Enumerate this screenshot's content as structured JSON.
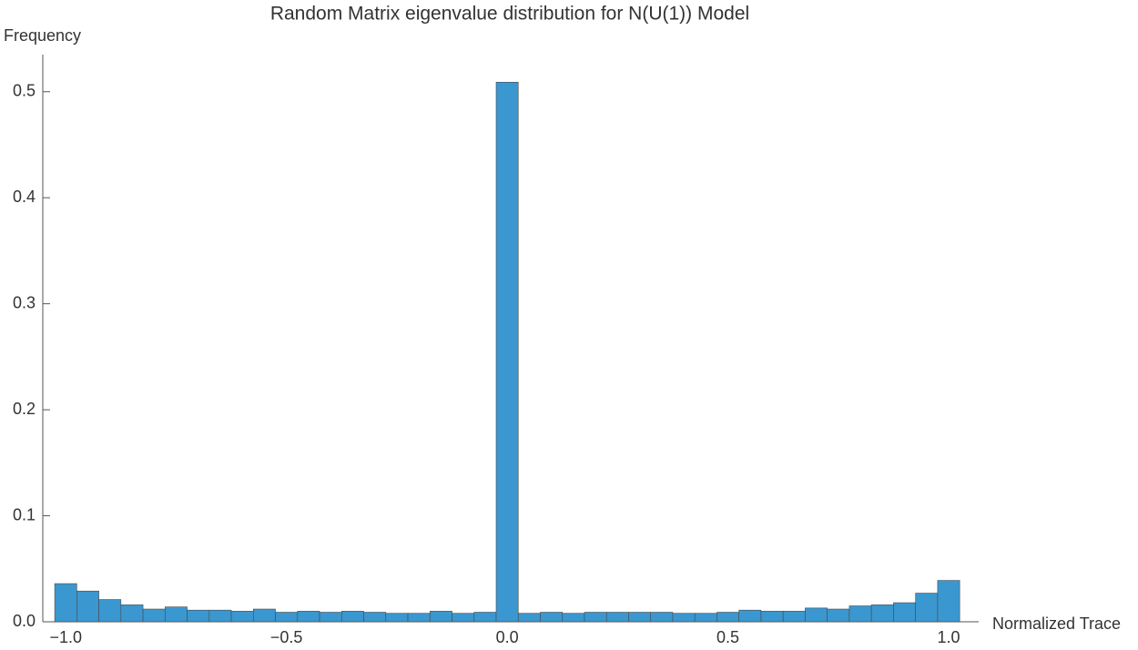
{
  "chart_data": {
    "type": "histogram",
    "title": "Random Matrix eigenvalue distribution for N(U(1)) Model",
    "x_label": "Normalized Trace",
    "y_label": "Frequency",
    "bins": [
      -1.025,
      -0.975,
      -0.925,
      -0.875,
      -0.825,
      -0.775,
      -0.725,
      -0.675,
      -0.625,
      -0.575,
      -0.525,
      -0.475,
      -0.425,
      -0.375,
      -0.325,
      -0.275,
      -0.225,
      -0.175,
      -0.125,
      -0.075,
      -0.025,
      0.025,
      0.075,
      0.125,
      0.175,
      0.225,
      0.275,
      0.325,
      0.375,
      0.425,
      0.475,
      0.525,
      0.575,
      0.625,
      0.675,
      0.725,
      0.775,
      0.825,
      0.875,
      0.925,
      0.975,
      1.025
    ],
    "values": [
      0.036,
      0.029,
      0.021,
      0.016,
      0.012,
      0.014,
      0.011,
      0.011,
      0.01,
      0.012,
      0.009,
      0.01,
      0.009,
      0.01,
      0.009,
      0.008,
      0.008,
      0.01,
      0.008,
      0.009,
      0.509,
      0.008,
      0.009,
      0.008,
      0.009,
      0.009,
      0.009,
      0.009,
      0.008,
      0.008,
      0.009,
      0.011,
      0.01,
      0.01,
      0.013,
      0.012,
      0.015,
      0.016,
      0.018,
      0.027,
      0.039
    ],
    "color": "#3a97cf",
    "xlim": [
      -1.052,
      1.068
    ],
    "ylim": [
      0,
      0.535
    ],
    "xticks": [
      {
        "value": -1,
        "label": "−1.0"
      },
      {
        "value": -0.5,
        "label": "−0.5"
      },
      {
        "value": 0,
        "label": "0.0"
      },
      0.5,
      {
        "value": 1,
        "label": "1.0"
      }
    ],
    "yticks": [
      {
        "value": 0,
        "label": "0.0"
      },
      0.1,
      0.2,
      0.3,
      0.4,
      0.5
    ],
    "grid": false
  }
}
